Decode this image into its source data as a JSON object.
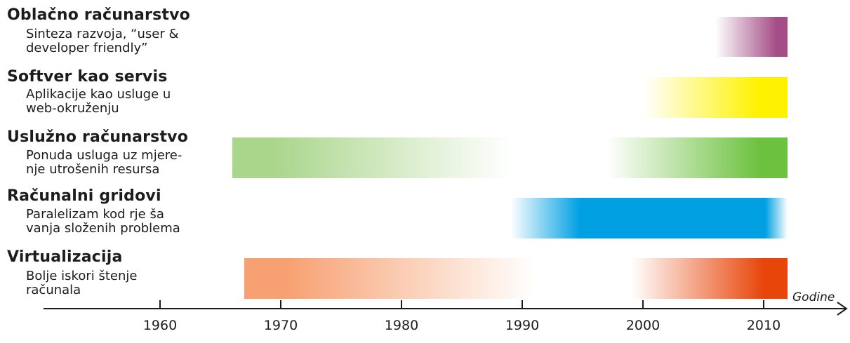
{
  "rows": [
    {
      "title": "Oblačno računarstvo",
      "desc_lines": [
        "Sinteza razvoja, “user &",
        "developer friendly”"
      ],
      "segments": [
        {
          "from": 2006,
          "to": 2012,
          "color": "#a44d86",
          "fade_in": 0.85,
          "fade_out": 0
        }
      ]
    },
    {
      "title": "Softver kao servis",
      "desc_lines": [
        "Aplikacije kao usluge u",
        "web-okruženju"
      ],
      "segments": [
        {
          "from": 2000,
          "to": 2012,
          "color": "#fff200",
          "fade_in": 0.8,
          "fade_out": 0
        }
      ]
    },
    {
      "title": "Uslužno računarstvo",
      "desc_lines": [
        "Ponuda usluga uz mjere-",
        "nje utrošenih resursa"
      ],
      "segments": [
        {
          "from": 1966,
          "to": 1989,
          "color": "#aad68c",
          "fade_in": 0,
          "fade_out": 0.85
        },
        {
          "from": 1997,
          "to": 2012,
          "color": "#6cc13e",
          "fade_in": 0.85,
          "fade_out": 0
        }
      ]
    },
    {
      "title": "Računalni gridovi",
      "desc_lines": [
        "Paralelizam kod rje ša",
        "vanja složenih problema"
      ],
      "segments": [
        {
          "from": 1989,
          "to": 2012,
          "color": "#00a0e3",
          "fade_in": 0.25,
          "fade_out": 0.08
        }
      ]
    },
    {
      "title": "Virtualizacija",
      "desc_lines": [
        "Bolje iskori štenje",
        "računala"
      ],
      "segments": [
        {
          "from": 1967,
          "to": 1991,
          "color": "#f7a172",
          "fade_in": 0,
          "fade_out": 0.85
        },
        {
          "from": 1999,
          "to": 2012,
          "color": "#e8450a",
          "fade_in": 0.85,
          "fade_out": 0
        }
      ]
    }
  ],
  "axis": {
    "label": "Godine",
    "min": 1950,
    "max": 2018,
    "ticks": [
      "1960",
      "1970",
      "1980",
      "1990",
      "2000",
      "2010"
    ]
  }
}
